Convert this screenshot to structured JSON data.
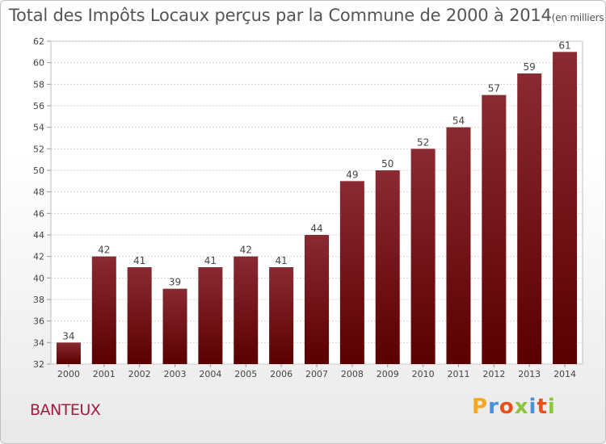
{
  "header": {
    "title": "Total des Impôts Locaux perçus par la Commune de 2000 à 2014",
    "unit": "(en milliers d'€)"
  },
  "commune": "BANTEUX",
  "logo": {
    "text": "Proxiti",
    "colors": [
      "#f5a623",
      "#4a90d9",
      "#e94e1b",
      "#8cc63f",
      "#4a90d9",
      "#e94e1b",
      "#8cc63f"
    ]
  },
  "colors": {
    "bar_dark": "#5a0000",
    "bar_light": "#8a2a33",
    "commune_text": "#a31c3f"
  },
  "chart_data": {
    "type": "bar",
    "categories": [
      "2000",
      "2001",
      "2002",
      "2003",
      "2004",
      "2005",
      "2006",
      "2007",
      "2008",
      "2009",
      "2010",
      "2011",
      "2012",
      "2013",
      "2014"
    ],
    "values": [
      34,
      42,
      41,
      39,
      41,
      42,
      41,
      44,
      49,
      50,
      52,
      54,
      57,
      59,
      61
    ],
    "ylim": [
      32,
      62
    ],
    "yticks": [
      32,
      34,
      36,
      38,
      40,
      42,
      44,
      46,
      48,
      50,
      52,
      54,
      56,
      58,
      60,
      62
    ],
    "grid": true,
    "data_labels": true
  }
}
